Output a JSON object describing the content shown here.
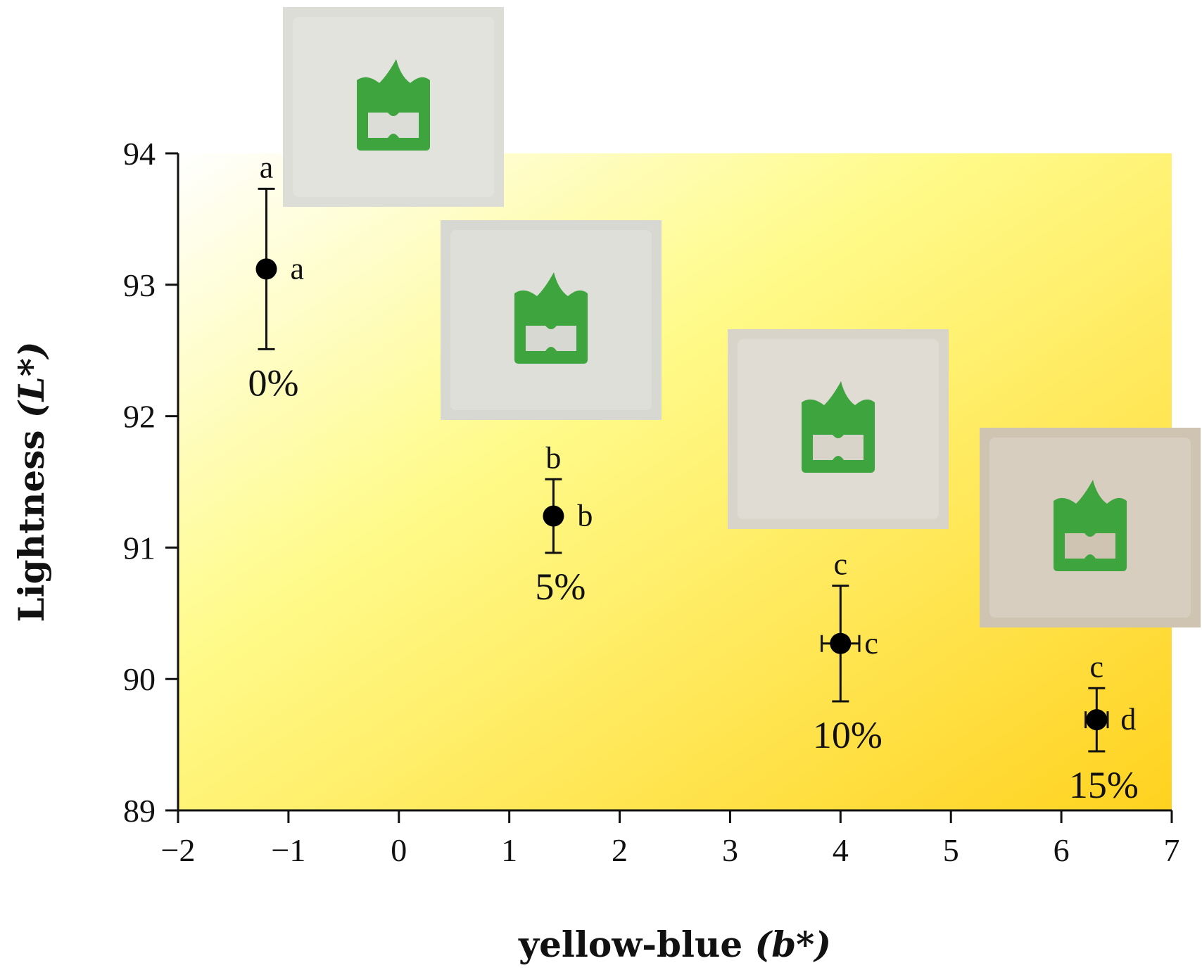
{
  "chart_data": {
    "type": "scatter",
    "xlabel_main": "yellow-blue ",
    "xlabel_var": "(b*)",
    "ylabel_main": "Lightness ",
    "ylabel_var": "(L*)",
    "xlim": [
      -2,
      7
    ],
    "ylim": [
      89,
      94
    ],
    "xticks": [
      -2,
      -1,
      0,
      1,
      2,
      3,
      4,
      5,
      6,
      7
    ],
    "xtick_labels": [
      "−2",
      "−1",
      "0",
      "1",
      "2",
      "3",
      "4",
      "5",
      "6",
      "7"
    ],
    "yticks": [
      89,
      90,
      91,
      92,
      93,
      94
    ],
    "ytick_labels": [
      "89",
      "90",
      "91",
      "92",
      "93",
      "94"
    ],
    "grid": false,
    "background": {
      "from": "#ffffff",
      "mid": "#fffb8c",
      "to": "#ffd21f"
    },
    "point_color": "#000000",
    "points": [
      {
        "label": "0%",
        "x": -1.2,
        "y": 93.12,
        "x_err": 0,
        "y_err": 0.61,
        "y_letter": "a",
        "x_letter": "a"
      },
      {
        "label": "5%",
        "x": 1.4,
        "y": 91.24,
        "x_err": 0,
        "y_err": 0.28,
        "y_letter": "b",
        "x_letter": "b"
      },
      {
        "label": "10%",
        "x": 4.0,
        "y": 90.27,
        "x_err": 0.17,
        "y_err": 0.44,
        "y_letter": "c",
        "x_letter": "c"
      },
      {
        "label": "15%",
        "x": 6.32,
        "y": 89.69,
        "x_err": 0.1,
        "y_err": 0.24,
        "y_letter": "c",
        "x_letter": "d"
      }
    ],
    "photo_colors": {
      "pouch": "#dcddd6",
      "logo": "#3ea43e"
    }
  }
}
